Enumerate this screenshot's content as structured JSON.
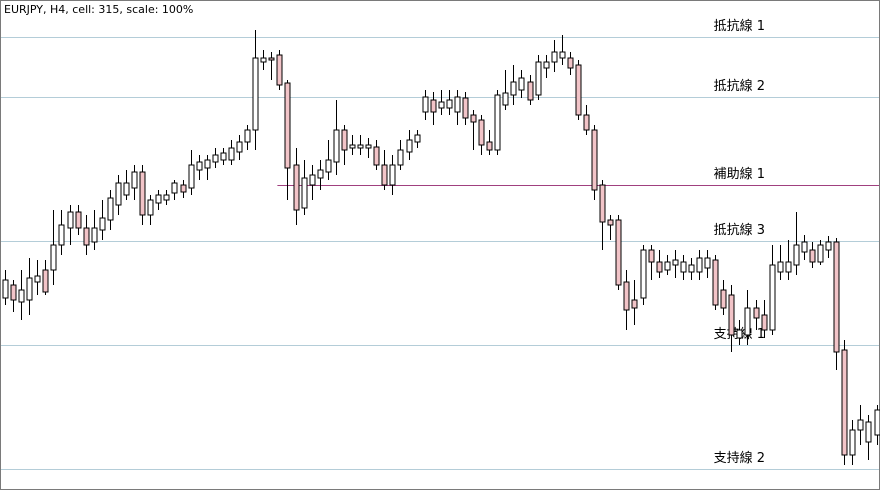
{
  "chart_data": {
    "type": "candlestick",
    "title": "EURJPY, H4, cell: 315, scale: 100%",
    "ylim": [
      0,
      490
    ],
    "up_color": "#ffffff",
    "down_color": "#f2c4c8",
    "edge_color": "#000000",
    "open": [
      192,
      205,
      188,
      190,
      208,
      220,
      220,
      245,
      262,
      278,
      262,
      248,
      260,
      270,
      285,
      295,
      302,
      318,
      275,
      287,
      290,
      297,
      305,
      302,
      320,
      322,
      328,
      330,
      330,
      338,
      348,
      360,
      428,
      432,
      435,
      407,
      325,
      282,
      305,
      312,
      318,
      328,
      360,
      342,
      342,
      342,
      343,
      325,
      305,
      325,
      338,
      348,
      378,
      390,
      382,
      382,
      378,
      392,
      375,
      370,
      348,
      340,
      385,
      395,
      400,
      408,
      395,
      422,
      428,
      432,
      432,
      425,
      375,
      360,
      305,
      270,
      270,
      208,
      190,
      192,
      240,
      228,
      220,
      225,
      218,
      218,
      218,
      222,
      230,
      200,
      195,
      152,
      155,
      182,
      175,
      160,
      218,
      218,
      225,
      238,
      240,
      228,
      240,
      248,
      140,
      35,
      60,
      48,
      55,
      78
    ],
    "high": [
      220,
      210,
      220,
      232,
      230,
      230,
      280,
      280,
      285,
      285,
      275,
      280,
      290,
      300,
      315,
      320,
      325,
      325,
      295,
      300,
      300,
      310,
      310,
      340,
      335,
      335,
      342,
      342,
      350,
      355,
      365,
      460,
      440,
      438,
      440,
      410,
      342,
      330,
      325,
      330,
      350,
      390,
      365,
      355,
      355,
      352,
      350,
      340,
      335,
      350,
      360,
      360,
      400,
      398,
      400,
      400,
      400,
      398,
      380,
      375,
      360,
      400,
      420,
      425,
      420,
      415,
      435,
      435,
      450,
      455,
      438,
      430,
      385,
      365,
      310,
      275,
      275,
      220,
      210,
      245,
      245,
      240,
      235,
      240,
      235,
      232,
      240,
      240,
      235,
      210,
      205,
      170,
      200,
      190,
      190,
      245,
      245,
      250,
      278,
      255,
      248,
      250,
      254,
      252,
      150,
      70,
      85,
      75,
      85,
      110
    ],
    "low": [
      185,
      178,
      170,
      175,
      195,
      195,
      205,
      235,
      245,
      255,
      235,
      240,
      250,
      260,
      275,
      290,
      290,
      265,
      265,
      280,
      285,
      290,
      292,
      295,
      310,
      310,
      322,
      325,
      325,
      330,
      340,
      340,
      420,
      410,
      400,
      290,
      265,
      275,
      290,
      300,
      310,
      315,
      325,
      335,
      335,
      332,
      320,
      300,
      295,
      320,
      330,
      342,
      370,
      365,
      375,
      375,
      365,
      365,
      340,
      335,
      335,
      335,
      380,
      385,
      392,
      385,
      390,
      412,
      418,
      425,
      415,
      370,
      355,
      290,
      240,
      250,
      200,
      160,
      165,
      185,
      210,
      212,
      215,
      212,
      210,
      210,
      210,
      212,
      180,
      175,
      138,
      145,
      145,
      160,
      152,
      155,
      210,
      210,
      215,
      230,
      222,
      225,
      232,
      120,
      25,
      25,
      45,
      30,
      45,
      70
    ],
    "close": [
      210,
      190,
      200,
      212,
      214,
      198,
      245,
      265,
      278,
      262,
      245,
      262,
      272,
      292,
      307,
      307,
      318,
      275,
      290,
      295,
      295,
      307,
      298,
      325,
      328,
      330,
      335,
      337,
      342,
      348,
      360,
      432,
      432,
      430,
      405,
      322,
      280,
      312,
      315,
      320,
      330,
      360,
      340,
      345,
      345,
      345,
      325,
      305,
      325,
      340,
      350,
      355,
      393,
      378,
      388,
      390,
      393,
      372,
      368,
      345,
      340,
      395,
      397,
      408,
      412,
      390,
      428,
      428,
      438,
      438,
      422,
      375,
      360,
      300,
      268,
      265,
      205,
      180,
      182,
      240,
      228,
      218,
      228,
      230,
      228,
      225,
      232,
      232,
      185,
      182,
      155,
      160,
      182,
      172,
      160,
      225,
      228,
      228,
      245,
      248,
      228,
      245,
      248,
      138,
      35,
      60,
      70,
      68,
      80,
      100
    ],
    "lines": [
      {
        "label": "抵抗線 1",
        "value": 453,
        "color": "#b4cdd8"
      },
      {
        "label": "抵抗線 2",
        "value": 393,
        "color": "#b4cdd8"
      },
      {
        "label": "補助線 1",
        "value": 305,
        "color": "#a0407f",
        "from": 34
      },
      {
        "label": "抵抗線 3",
        "value": 249,
        "color": "#b4cdd8"
      },
      {
        "label": "支持線 1",
        "value": 145,
        "color": "#b4cdd8"
      },
      {
        "label": "支持線 2",
        "value": 21,
        "color": "#b4cdd8"
      }
    ]
  }
}
